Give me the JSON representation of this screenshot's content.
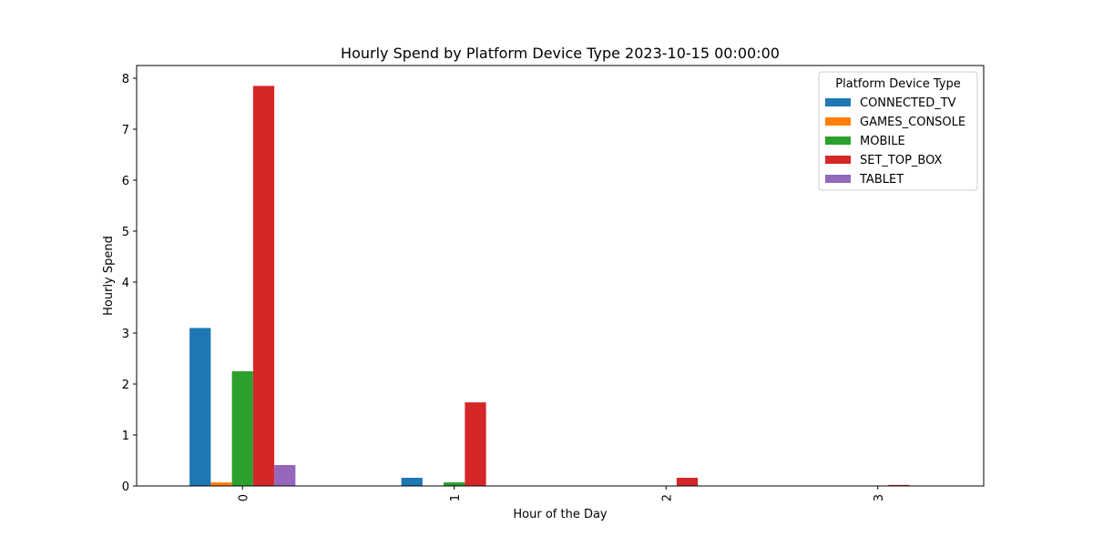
{
  "chart_data": {
    "type": "bar",
    "title": "Hourly Spend by Platform Device Type 2023-10-15 00:00:00",
    "xlabel": "Hour of the Day",
    "ylabel": "Hourly Spend",
    "categories": [
      "0",
      "1",
      "2",
      "3"
    ],
    "ylim": [
      0,
      8.25
    ],
    "yticks": [
      0,
      1,
      2,
      3,
      4,
      5,
      6,
      7,
      8
    ],
    "grid": false,
    "legend": {
      "title": "Platform Device Type",
      "placement": "top-right"
    },
    "series": [
      {
        "name": "CONNECTED_TV",
        "color": "#1f77b4",
        "values": [
          3.1,
          0.16,
          0,
          0
        ]
      },
      {
        "name": "GAMES_CONSOLE",
        "color": "#ff7f0e",
        "values": [
          0.07,
          0,
          0,
          0
        ]
      },
      {
        "name": "MOBILE",
        "color": "#2ca02c",
        "values": [
          2.25,
          0.07,
          0,
          0
        ]
      },
      {
        "name": "SET_TOP_BOX",
        "color": "#d62728",
        "values": [
          7.85,
          1.64,
          0.16,
          0.02
        ]
      },
      {
        "name": "TABLET",
        "color": "#9467bd",
        "values": [
          0.41,
          0,
          0,
          0
        ]
      }
    ]
  }
}
